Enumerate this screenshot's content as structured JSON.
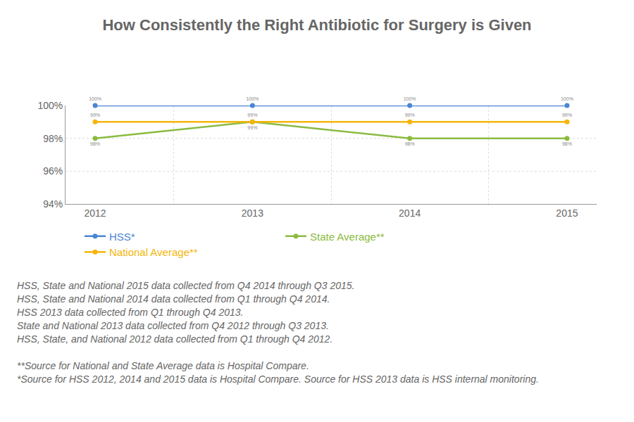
{
  "chart_data": {
    "type": "line",
    "title": "How Consistently the Right Antibiotic for Surgery is Given",
    "categories": [
      "2012",
      "2013",
      "2014",
      "2015"
    ],
    "series": [
      {
        "name": "HSS*",
        "color": "#4a86d4",
        "values": [
          100,
          100,
          100,
          100
        ],
        "value_labels": [
          "100%",
          "100%",
          "100%",
          "100%"
        ]
      },
      {
        "name": "State Average**",
        "color": "#8bbb41",
        "values": [
          98,
          99,
          98,
          98
        ],
        "value_labels": [
          "98%",
          "99%",
          "98%",
          "98%"
        ]
      },
      {
        "name": "National Average**",
        "color": "#f5b50a",
        "values": [
          99,
          99,
          99,
          99
        ],
        "value_labels": [
          "99%",
          "99%",
          "99%",
          "99%"
        ]
      }
    ],
    "ylim": [
      94,
      100
    ],
    "yticks": [
      {
        "value": 94,
        "label": "94%"
      },
      {
        "value": 96,
        "label": "96%"
      },
      {
        "value": 98,
        "label": "98%"
      },
      {
        "value": 100,
        "label": "100%"
      }
    ],
    "grid": true,
    "legend": "bottom",
    "data_labels": true,
    "marker": "circle",
    "annotations": [
      [
        "HSS, State and National 2015 data collected from Q4 2014 through Q3 2015.",
        "HSS, State and National 2014 data collected from Q1 through Q4 2014.",
        "HSS 2013 data collected from Q1 through Q4 2013.",
        "State and National 2013 data collected from Q4 2012 through Q3 2013.",
        "HSS, State, and National 2012 data collected from Q1 through Q4 2012."
      ],
      [
        "**Source for National and State Average data is Hospital Compare.",
        "*Source for HSS 2012, 2014 and 2015 data is Hospital Compare. Source for HSS 2013 data is HSS internal monitoring."
      ]
    ]
  }
}
